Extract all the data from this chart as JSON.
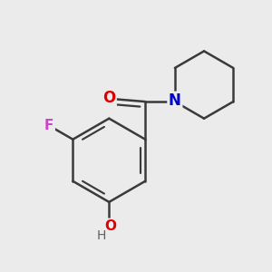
{
  "bg_color": "#ebebeb",
  "bond_color": "#3a3a3a",
  "bond_width": 1.8,
  "atom_colors": {
    "O_carbonyl": "#dd0000",
    "N": "#0000cc",
    "F": "#cc44cc",
    "O_hydroxy": "#dd0000",
    "H": "#606060"
  },
  "figsize": [
    3.0,
    3.0
  ],
  "dpi": 100
}
